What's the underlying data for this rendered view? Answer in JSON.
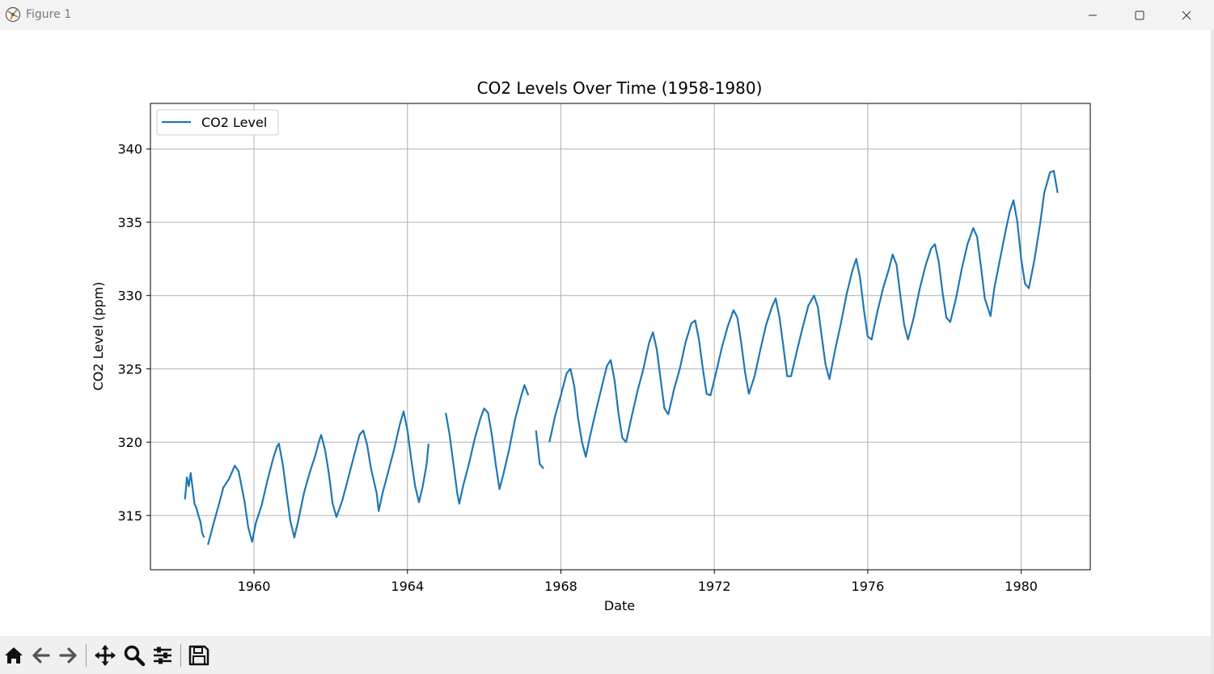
{
  "window": {
    "title": "Figure 1"
  },
  "chart_data": {
    "type": "line",
    "title": "CO2 Levels Over Time (1958-1980)",
    "xlabel": "Date",
    "ylabel": "CO2 Level (ppm)",
    "xlim": [
      1957.3,
      1981.8
    ],
    "ylim": [
      311.3,
      343.1
    ],
    "xticks": [
      1960,
      1964,
      1968,
      1972,
      1976,
      1980
    ],
    "xtick_labels": [
      "1960",
      "1964",
      "1968",
      "1972",
      "1976",
      "1980"
    ],
    "yticks": [
      315,
      320,
      325,
      330,
      335,
      340
    ],
    "ytick_labels": [
      "315",
      "320",
      "325",
      "330",
      "335",
      "340"
    ],
    "grid": true,
    "legend_position": "top-left",
    "series": [
      {
        "name": "CO2 Level",
        "color": "#1f77b4",
        "points": [
          [
            1958.2,
            316.1
          ],
          [
            1958.25,
            317.6
          ],
          [
            1958.3,
            317.0
          ],
          [
            1958.35,
            317.9
          ],
          [
            1958.45,
            315.8
          ],
          [
            1958.5,
            315.5
          ],
          [
            1958.55,
            315.0
          ],
          [
            1958.6,
            314.6
          ],
          [
            1958.65,
            313.8
          ],
          [
            1958.7,
            313.5
          ],
          [
            1958.75,
            null
          ],
          [
            1958.8,
            313.0
          ],
          [
            1958.95,
            314.5
          ],
          [
            1959.1,
            315.9
          ],
          [
            1959.2,
            316.9
          ],
          [
            1959.35,
            317.5
          ],
          [
            1959.5,
            318.4
          ],
          [
            1959.6,
            318.0
          ],
          [
            1959.75,
            316.0
          ],
          [
            1959.85,
            314.2
          ],
          [
            1959.95,
            313.2
          ],
          [
            1960.05,
            314.5
          ],
          [
            1960.2,
            315.7
          ],
          [
            1960.35,
            317.4
          ],
          [
            1960.5,
            318.9
          ],
          [
            1960.6,
            319.7
          ],
          [
            1960.65,
            319.9
          ],
          [
            1960.75,
            318.5
          ],
          [
            1960.85,
            316.5
          ],
          [
            1960.95,
            314.6
          ],
          [
            1961.05,
            313.5
          ],
          [
            1961.15,
            314.6
          ],
          [
            1961.3,
            316.5
          ],
          [
            1961.45,
            317.9
          ],
          [
            1961.6,
            319.1
          ],
          [
            1961.7,
            320.1
          ],
          [
            1961.75,
            320.5
          ],
          [
            1961.85,
            319.5
          ],
          [
            1961.95,
            317.9
          ],
          [
            1962.05,
            315.8
          ],
          [
            1962.15,
            314.9
          ],
          [
            1962.3,
            316.0
          ],
          [
            1962.45,
            317.5
          ],
          [
            1962.6,
            319.0
          ],
          [
            1962.75,
            320.5
          ],
          [
            1962.85,
            320.8
          ],
          [
            1962.95,
            319.8
          ],
          [
            1963.05,
            318.2
          ],
          [
            1963.2,
            316.5
          ],
          [
            1963.25,
            315.3
          ],
          [
            1963.35,
            316.5
          ],
          [
            1963.5,
            318.0
          ],
          [
            1963.65,
            319.5
          ],
          [
            1963.8,
            321.2
          ],
          [
            1963.9,
            322.1
          ],
          [
            1964.0,
            320.8
          ],
          [
            1964.1,
            318.8
          ],
          [
            1964.2,
            317.0
          ],
          [
            1964.3,
            315.9
          ],
          [
            1964.4,
            317.0
          ],
          [
            1964.5,
            318.5
          ],
          [
            1964.55,
            319.9
          ],
          [
            1964.6,
            null
          ],
          [
            1965.0,
            322.0
          ],
          [
            1965.1,
            320.5
          ],
          [
            1965.2,
            318.5
          ],
          [
            1965.3,
            316.5
          ],
          [
            1965.35,
            315.8
          ],
          [
            1965.45,
            317.0
          ],
          [
            1965.6,
            318.5
          ],
          [
            1965.75,
            320.2
          ],
          [
            1965.9,
            321.6
          ],
          [
            1966.0,
            322.3
          ],
          [
            1966.1,
            322.0
          ],
          [
            1966.2,
            320.5
          ],
          [
            1966.3,
            318.5
          ],
          [
            1966.4,
            316.8
          ],
          [
            1966.5,
            317.8
          ],
          [
            1966.65,
            319.5
          ],
          [
            1966.8,
            321.5
          ],
          [
            1966.95,
            323.0
          ],
          [
            1967.05,
            323.9
          ],
          [
            1967.15,
            323.2
          ],
          [
            1967.25,
            null
          ],
          [
            1967.35,
            320.8
          ],
          [
            1967.45,
            318.5
          ],
          [
            1967.55,
            318.2
          ],
          [
            1967.6,
            null
          ],
          [
            1967.7,
            320.0
          ],
          [
            1967.85,
            321.8
          ],
          [
            1968.0,
            323.2
          ],
          [
            1968.15,
            324.7
          ],
          [
            1968.25,
            325.0
          ],
          [
            1968.35,
            323.8
          ],
          [
            1968.45,
            321.6
          ],
          [
            1968.55,
            320.0
          ],
          [
            1968.65,
            319.0
          ],
          [
            1968.75,
            320.3
          ],
          [
            1968.9,
            322.0
          ],
          [
            1969.05,
            323.6
          ],
          [
            1969.2,
            325.2
          ],
          [
            1969.3,
            325.6
          ],
          [
            1969.4,
            324.2
          ],
          [
            1969.5,
            322.0
          ],
          [
            1969.6,
            320.3
          ],
          [
            1969.7,
            320.0
          ],
          [
            1969.85,
            321.8
          ],
          [
            1970.0,
            323.5
          ],
          [
            1970.15,
            325.0
          ],
          [
            1970.3,
            326.8
          ],
          [
            1970.4,
            327.5
          ],
          [
            1970.5,
            326.3
          ],
          [
            1970.6,
            324.3
          ],
          [
            1970.7,
            322.3
          ],
          [
            1970.8,
            321.9
          ],
          [
            1970.95,
            323.6
          ],
          [
            1971.1,
            325.0
          ],
          [
            1971.25,
            326.8
          ],
          [
            1971.4,
            328.1
          ],
          [
            1971.5,
            328.3
          ],
          [
            1971.6,
            327.0
          ],
          [
            1971.7,
            325.0
          ],
          [
            1971.8,
            323.3
          ],
          [
            1971.9,
            323.2
          ],
          [
            1972.05,
            324.8
          ],
          [
            1972.2,
            326.5
          ],
          [
            1972.35,
            327.9
          ],
          [
            1972.5,
            329.0
          ],
          [
            1972.6,
            328.5
          ],
          [
            1972.7,
            326.8
          ],
          [
            1972.8,
            324.8
          ],
          [
            1972.9,
            323.3
          ],
          [
            1973.05,
            324.5
          ],
          [
            1973.2,
            326.3
          ],
          [
            1973.35,
            328.0
          ],
          [
            1973.5,
            329.2
          ],
          [
            1973.6,
            329.8
          ],
          [
            1973.7,
            328.5
          ],
          [
            1973.8,
            326.5
          ],
          [
            1973.9,
            324.5
          ],
          [
            1974.0,
            324.5
          ],
          [
            1974.15,
            326.2
          ],
          [
            1974.3,
            327.8
          ],
          [
            1974.45,
            329.3
          ],
          [
            1974.6,
            330.0
          ],
          [
            1974.7,
            329.2
          ],
          [
            1974.8,
            327.2
          ],
          [
            1974.9,
            325.3
          ],
          [
            1975.0,
            324.3
          ],
          [
            1975.15,
            326.3
          ],
          [
            1975.3,
            328.1
          ],
          [
            1975.45,
            330.1
          ],
          [
            1975.6,
            331.7
          ],
          [
            1975.7,
            332.5
          ],
          [
            1975.8,
            331.2
          ],
          [
            1975.9,
            329.0
          ],
          [
            1976.0,
            327.2
          ],
          [
            1976.1,
            327.0
          ],
          [
            1976.25,
            328.9
          ],
          [
            1976.4,
            330.5
          ],
          [
            1976.55,
            331.8
          ],
          [
            1976.65,
            332.8
          ],
          [
            1976.75,
            332.1
          ],
          [
            1976.85,
            330.0
          ],
          [
            1976.95,
            328.0
          ],
          [
            1977.05,
            327.0
          ],
          [
            1977.2,
            328.5
          ],
          [
            1977.35,
            330.4
          ],
          [
            1977.5,
            332.0
          ],
          [
            1977.65,
            333.2
          ],
          [
            1977.75,
            333.5
          ],
          [
            1977.85,
            332.3
          ],
          [
            1977.95,
            330.2
          ],
          [
            1978.05,
            328.5
          ],
          [
            1978.15,
            328.2
          ],
          [
            1978.3,
            329.8
          ],
          [
            1978.45,
            331.8
          ],
          [
            1978.6,
            333.5
          ],
          [
            1978.75,
            334.6
          ],
          [
            1978.85,
            334.0
          ],
          [
            1978.95,
            332.0
          ],
          [
            1979.05,
            329.8
          ],
          [
            1979.2,
            328.6
          ],
          [
            1979.3,
            330.5
          ],
          [
            1979.45,
            332.5
          ],
          [
            1979.6,
            334.5
          ],
          [
            1979.7,
            335.7
          ],
          [
            1979.8,
            336.5
          ],
          [
            1979.9,
            335.0
          ],
          [
            1980.0,
            332.5
          ],
          [
            1980.1,
            330.8
          ],
          [
            1980.2,
            330.5
          ],
          [
            1980.35,
            332.5
          ],
          [
            1980.5,
            335.0
          ],
          [
            1980.6,
            337.0
          ],
          [
            1980.75,
            338.4
          ],
          [
            1980.85,
            338.5
          ],
          [
            1980.95,
            337.0
          ]
        ]
      }
    ]
  }
}
